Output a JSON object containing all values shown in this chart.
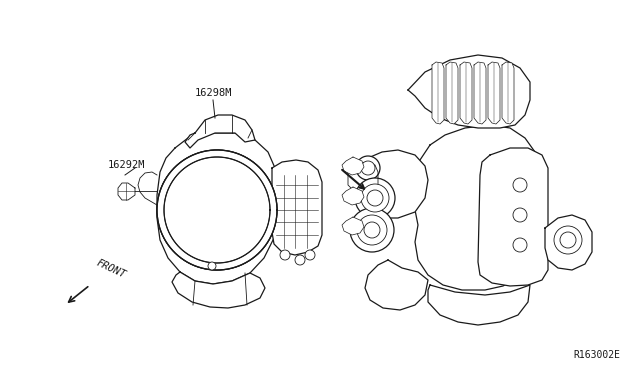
{
  "bg_color": "#ffffff",
  "line_color": "#1a1a1a",
  "text_color": "#1a1a1a",
  "label_16298BM": "16298M",
  "label_16292M": "16292M",
  "label_front": "FRONT",
  "label_ref": "R163002E",
  "lw_main": 0.9,
  "lw_thin": 0.6,
  "font_size_label": 7.5,
  "font_size_ref": 7
}
